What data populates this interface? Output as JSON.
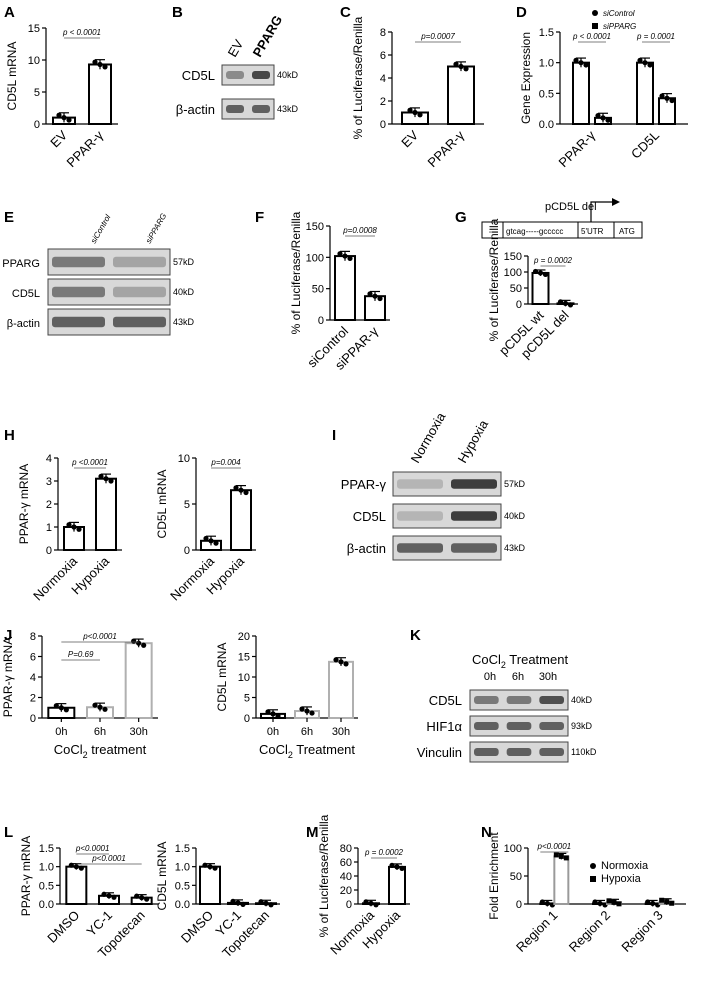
{
  "panel_labels": [
    "A",
    "B",
    "C",
    "D",
    "E",
    "F",
    "G",
    "H",
    "I",
    "J",
    "K",
    "L",
    "M",
    "N"
  ],
  "blots": {
    "B": {
      "lanes": [
        "EV",
        "PPARG"
      ],
      "rows": [
        {
          "label": "CD5L",
          "kd": "40kD"
        },
        {
          "label": "β-actin",
          "kd": "43kD"
        }
      ]
    },
    "E": {
      "lanes": [
        "siControl",
        "siPPARG"
      ],
      "rows": [
        {
          "label": "PPARG",
          "kd": "57kD"
        },
        {
          "label": "CD5L",
          "kd": "40kD"
        },
        {
          "label": "β-actin",
          "kd": "43kD"
        }
      ]
    },
    "I": {
      "lanes": [
        "Normoxia",
        "Hypoxia"
      ],
      "rows": [
        {
          "label": "PPAR-γ",
          "kd": "57kD"
        },
        {
          "label": "CD5L",
          "kd": "40kD"
        },
        {
          "label": "β-actin",
          "kd": "43kD"
        }
      ]
    },
    "K": {
      "title": "CoCl",
      "title_sub": "2",
      "title_rest": " Treatment",
      "lanes": [
        "0h",
        "6h",
        "30h"
      ],
      "rows": [
        {
          "label": "CD5L",
          "kd": "40kD"
        },
        {
          "label": "HIF1α",
          "kd": "93kD"
        },
        {
          "label": "Vinculin",
          "kd": "110kD"
        }
      ]
    }
  },
  "construct_G": {
    "title": "pCD5L del",
    "segments": [
      "gtcag-----gccccc",
      "5'UTR",
      "ATG"
    ]
  },
  "chart_data": [
    {
      "panel": "A",
      "type": "bar",
      "categories": [
        "EV",
        "PPAR-γ"
      ],
      "values": [
        1,
        9.3
      ],
      "ylabel": "CD5L mRNA",
      "ylim": [
        0,
        15
      ],
      "yticks": [
        "0",
        "5",
        "10",
        "15"
      ],
      "pvalue": "p < 0.0001"
    },
    {
      "panel": "C",
      "type": "bar",
      "categories": [
        "EV",
        "PPAR-γ"
      ],
      "values": [
        1,
        5
      ],
      "ylabel": "% of Luciferase/Renilla",
      "ylim": [
        0,
        8
      ],
      "yticks": [
        "0",
        "2",
        "4",
        "6",
        "8"
      ],
      "pvalue": "p=0.0007"
    },
    {
      "panel": "D",
      "type": "bar",
      "categories": [
        "PPAR-γ",
        "CD5L"
      ],
      "series": [
        {
          "name": "siControl",
          "values": [
            1,
            1
          ]
        },
        {
          "name": "siPPARG",
          "values": [
            0.1,
            0.42
          ]
        }
      ],
      "ylabel": "Gene Expression",
      "ylim": [
        0,
        1.5
      ],
      "yticks": [
        "0.0",
        "0.5",
        "1.0",
        "1.5"
      ],
      "pvalues": [
        "p < 0.0001",
        "p = 0.0001"
      ]
    },
    {
      "panel": "F",
      "type": "bar",
      "categories": [
        "siControl",
        "siPPAR-γ"
      ],
      "values": [
        102,
        38
      ],
      "ylabel": "% of Luciferase/Renilla",
      "ylim": [
        0,
        150
      ],
      "yticks": [
        "0",
        "50",
        "100",
        "150"
      ],
      "pvalue": "p=0.0008"
    },
    {
      "panel": "G",
      "type": "bar",
      "categories": [
        "pCD5L wt",
        "pCD5L del"
      ],
      "values": [
        97,
        2
      ],
      "ylabel": "% of Luciferase/Renilla",
      "ylim": [
        0,
        150
      ],
      "yticks": [
        "0",
        "50",
        "100",
        "150"
      ],
      "pvalue": "p = 0.0002"
    },
    {
      "panel": "H1",
      "type": "bar",
      "categories": [
        "Normoxia",
        "Hypoxia"
      ],
      "values": [
        1,
        3.1
      ],
      "ylabel": "PPAR-γ mRNA",
      "ylim": [
        0,
        4
      ],
      "yticks": [
        "0",
        "1",
        "2",
        "3",
        "4"
      ],
      "pvalue": "p <0.0001"
    },
    {
      "panel": "H2",
      "type": "bar",
      "categories": [
        "Normoxia",
        "Hypoxia"
      ],
      "values": [
        1,
        6.5
      ],
      "ylabel": "CD5L mRNA",
      "ylim": [
        0,
        10
      ],
      "yticks": [
        "0",
        "5",
        "10"
      ],
      "pvalue": "p=0.004"
    },
    {
      "panel": "J1",
      "type": "bar",
      "categories": [
        "0h",
        "6h",
        "30h"
      ],
      "values": [
        1,
        1.05,
        7.3
      ],
      "ylabel": "PPAR-γ mRNA",
      "xlabel": "CoCl2 treatment",
      "ylim": [
        0,
        8
      ],
      "yticks": [
        "0",
        "2",
        "4",
        "6",
        "8"
      ],
      "pvalues": [
        "P=0.69",
        "p<0.0001"
      ]
    },
    {
      "panel": "J2",
      "type": "bar",
      "categories": [
        "0h",
        "6h",
        "30h"
      ],
      "values": [
        1,
        1.7,
        13.7
      ],
      "ylabel": "CD5L mRNA",
      "xlabel": "CoCl2 Treatment",
      "ylim": [
        0,
        20
      ],
      "yticks": [
        "0",
        "5",
        "10",
        "15",
        "20"
      ]
    },
    {
      "panel": "L1",
      "type": "bar",
      "categories": [
        "DMSO",
        "YC-1",
        "Topotecan"
      ],
      "values": [
        1,
        0.22,
        0.17
      ],
      "ylabel": "PPAR-γ mRNA",
      "ylim": [
        0,
        1.5
      ],
      "yticks": [
        "0.0",
        "0.5",
        "1.0",
        "1.5"
      ],
      "pvalues": [
        "p<0.0001",
        "p<0.0001"
      ]
    },
    {
      "panel": "L2",
      "type": "bar",
      "categories": [
        "DMSO",
        "YC-1",
        "Topotecan"
      ],
      "values": [
        1,
        0.03,
        0.02
      ],
      "ylabel": "CD5L mRNA",
      "ylim": [
        0,
        1.5
      ],
      "yticks": [
        "0.0",
        "0.5",
        "1.0",
        "1.5"
      ]
    },
    {
      "panel": "M",
      "type": "bar",
      "categories": [
        "Normoxia",
        "Hypoxia"
      ],
      "values": [
        1,
        53
      ],
      "ylabel": "% of Luciferase/Renilla",
      "ylim": [
        0,
        80
      ],
      "yticks": [
        "0",
        "20",
        "40",
        "60",
        "80"
      ],
      "pvalue": "p = 0.0002"
    },
    {
      "panel": "N",
      "type": "bar",
      "categories": [
        "Region 1",
        "Region 2",
        "Region 3"
      ],
      "series": [
        {
          "name": "Normoxia",
          "values": [
            1,
            1,
            1
          ]
        },
        {
          "name": "Hypoxia",
          "values": [
            85,
            3,
            4
          ]
        }
      ],
      "ylabel": "Fold Enrichment",
      "ylim": [
        0,
        100
      ],
      "yticks": [
        "0",
        "50",
        "100"
      ],
      "pvalue": "p<0.0001"
    }
  ]
}
